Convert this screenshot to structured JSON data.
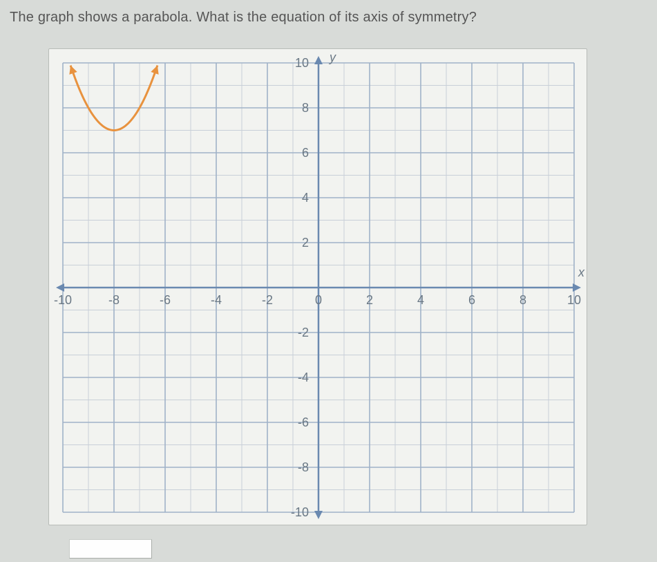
{
  "question_text": "The graph shows a parabola. What is the equation of its axis of symmetry?",
  "chart": {
    "type": "scatter-line",
    "background_color": "#f2f3f0",
    "grid_minor_color": "#c8cfd8",
    "grid_major_color": "#9fb2c8",
    "axis_color": "#6a89b0",
    "parabola_color": "#e8923e",
    "xlim": [
      -10,
      10
    ],
    "ylim": [
      -10,
      10
    ],
    "major_step": 2,
    "minor_step": 1,
    "x_ticks": [
      -10,
      -8,
      -6,
      -4,
      -2,
      0,
      2,
      4,
      6,
      8,
      10
    ],
    "y_ticks": [
      -10,
      -8,
      -6,
      -4,
      -2,
      2,
      4,
      6,
      8,
      10
    ],
    "x_axis_label": "x",
    "y_axis_label": "y",
    "tick_fontsize": 18,
    "parabola": {
      "vertex": [
        -8,
        7
      ],
      "coefficient": 1,
      "points": [
        [
          -9.7,
          9.9
        ],
        [
          -9.5,
          9.25
        ],
        [
          -9,
          8
        ],
        [
          -8.5,
          7.25
        ],
        [
          -8,
          7
        ],
        [
          -7.5,
          7.25
        ],
        [
          -7,
          8
        ],
        [
          -6.5,
          9.25
        ],
        [
          -6.3,
          9.9
        ]
      ],
      "line_width": 3
    }
  },
  "answer_input": {
    "value": "",
    "placeholder": ""
  }
}
